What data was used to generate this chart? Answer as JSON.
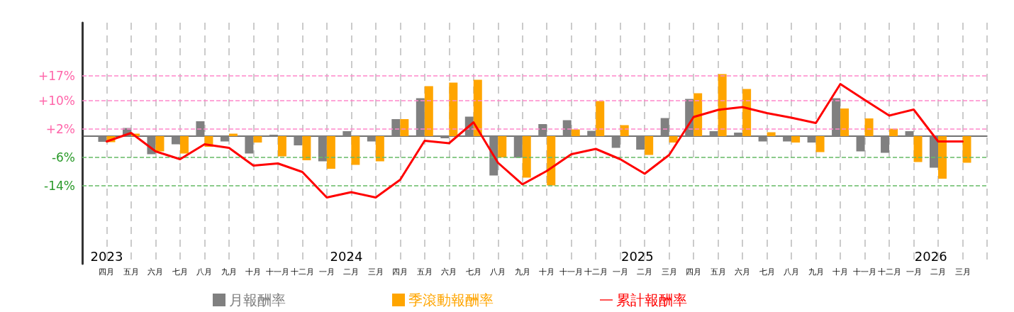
{
  "chart_data": {
    "type": "bar",
    "categories": [
      "四月",
      "五月",
      "六月",
      "七月",
      "八月",
      "九月",
      "十月",
      "十一月",
      "十二月",
      "一月",
      "二月",
      "三月",
      "四月",
      "五月",
      "六月",
      "七月",
      "八月",
      "九月",
      "十月",
      "十一月",
      "十二月",
      "一月",
      "二月",
      "三月",
      "四月",
      "五月",
      "六月",
      "七月",
      "八月",
      "九月",
      "十月",
      "十一月",
      "十二月",
      "一月",
      "二月",
      "三月"
    ],
    "series": [
      {
        "name": "月報酬率",
        "color": "#808080",
        "values": [
          -1.6,
          2.3,
          -5.1,
          -2.3,
          4.2,
          -1.5,
          -4.9,
          0.4,
          -2.6,
          -7.1,
          1.4,
          -1.5,
          4.8,
          10.7,
          -0.6,
          5.5,
          -11.1,
          -6.1,
          3.4,
          4.5,
          1.5,
          -3.3,
          -3.8,
          5.1,
          10.5,
          1.4,
          1.0,
          -1.5,
          -1.5,
          -1.8,
          10.7,
          -4.3,
          -4.7,
          1.4,
          -8.9,
          null
        ]
      },
      {
        "name": "季滾動報酬率",
        "color": "#ffa500",
        "values": [
          -1.7,
          0.7,
          -4.3,
          -4.9,
          -3.0,
          0.7,
          -1.8,
          -5.7,
          -6.8,
          -9.2,
          -8.1,
          -7.1,
          4.8,
          14.1,
          15.1,
          15.9,
          -6.0,
          -11.7,
          -13.9,
          1.9,
          9.9,
          3.1,
          -5.3,
          -1.8,
          12.1,
          17.5,
          13.3,
          1.1,
          -1.8,
          -4.5,
          7.8,
          5.0,
          2.1,
          -7.3,
          -12.0,
          -7.5
        ]
      },
      {
        "name": "累計報酬率",
        "type": "line",
        "color": "#ff0000",
        "values": [
          -1.5,
          0.9,
          -4.3,
          -6.5,
          -2.3,
          -3.3,
          -8.3,
          -7.7,
          -10.1,
          -17.3,
          -15.8,
          -17.3,
          -12.3,
          -1.3,
          -2.0,
          3.9,
          -7.5,
          -13.6,
          -9.8,
          -5.1,
          -3.6,
          -6.5,
          -10.6,
          -5.3,
          5.4,
          7.4,
          8.2,
          6.5,
          5.2,
          3.7,
          14.7,
          10.2,
          5.8,
          7.5,
          -1.5,
          -1.5
        ]
      }
    ],
    "ylim": [
      -36,
      32
    ],
    "yticks": [
      {
        "value": 17,
        "label": "+17%"
      },
      {
        "value": 10,
        "label": "+10%"
      },
      {
        "value": 2,
        "label": "+2%"
      },
      {
        "value": -6,
        "label": "-6%"
      },
      {
        "value": -14,
        "label": "-14%"
      }
    ],
    "ref_lines": [
      {
        "axis": "y",
        "value": 17,
        "color": "#ff88cc",
        "line_style": "dashed"
      },
      {
        "axis": "y",
        "value": 10,
        "color": "#ff88cc",
        "line_style": "dashed"
      },
      {
        "axis": "y",
        "value": 2,
        "color": "#ff88cc",
        "line_style": "dashed"
      },
      {
        "axis": "y",
        "value": -6,
        "color": "#66bb66",
        "line_style": "dashed"
      },
      {
        "axis": "y",
        "value": -14,
        "color": "#66bb66",
        "line_style": "dashed"
      }
    ],
    "annotations": [
      "2023",
      "2024",
      "2025",
      "2026"
    ],
    "grid": "x",
    "legend": "bottom",
    "marker": "none",
    "line_style": "solid"
  }
}
